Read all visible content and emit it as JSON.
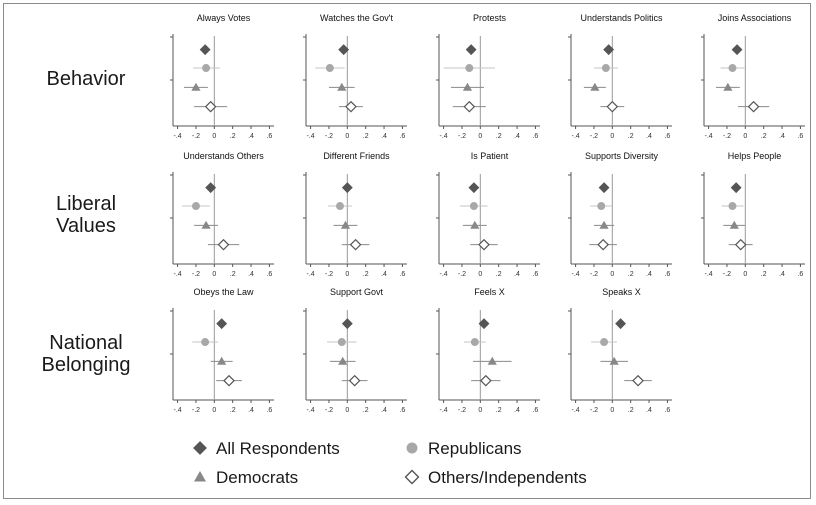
{
  "chart_data": {
    "type": "scatter",
    "x_ticks": [
      "-.4",
      "-.2",
      "0",
      ".2",
      ".4",
      ".6"
    ],
    "xlim": [
      -0.45,
      0.65
    ],
    "zero_line": 0,
    "series": [
      {
        "name": "All Respondents",
        "marker": "diamond",
        "color": "#555555"
      },
      {
        "name": "Republicans",
        "marker": "circle",
        "color": "#a8a8a8"
      },
      {
        "name": "Democrats",
        "marker": "triangle",
        "color": "#888888"
      },
      {
        "name": "Others/Independents",
        "marker": "diamond-open",
        "color": "#555555"
      }
    ],
    "rows": [
      {
        "label_lines": [
          "Behavior"
        ],
        "panels": [
          {
            "title": "Always Votes",
            "points": [
              {
                "estimate": -0.1,
                "ci": [
                  -0.15,
                  -0.05
                ]
              },
              {
                "estimate": -0.09,
                "ci": [
                  -0.23,
                  0.06
                ]
              },
              {
                "estimate": -0.2,
                "ci": [
                  -0.33,
                  -0.07
                ]
              },
              {
                "estimate": -0.04,
                "ci": [
                  -0.22,
                  0.14
                ]
              }
            ]
          },
          {
            "title": "Watches the Gov't",
            "points": [
              {
                "estimate": -0.04,
                "ci": [
                  -0.09,
                  0.01
                ]
              },
              {
                "estimate": -0.19,
                "ci": [
                  -0.35,
                  -0.03
                ]
              },
              {
                "estimate": -0.06,
                "ci": [
                  -0.2,
                  0.08
                ]
              },
              {
                "estimate": 0.04,
                "ci": [
                  -0.09,
                  0.17
                ]
              }
            ]
          },
          {
            "title": "Protests",
            "points": [
              {
                "estimate": -0.1,
                "ci": [
                  -0.15,
                  -0.05
                ]
              },
              {
                "estimate": -0.12,
                "ci": [
                  -0.4,
                  0.16
                ]
              },
              {
                "estimate": -0.14,
                "ci": [
                  -0.32,
                  0.04
                ]
              },
              {
                "estimate": -0.12,
                "ci": [
                  -0.3,
                  0.06
                ]
              }
            ]
          },
          {
            "title": "Understands Politics",
            "points": [
              {
                "estimate": -0.04,
                "ci": [
                  -0.09,
                  0.01
                ]
              },
              {
                "estimate": -0.07,
                "ci": [
                  -0.2,
                  0.06
                ]
              },
              {
                "estimate": -0.19,
                "ci": [
                  -0.31,
                  -0.07
                ]
              },
              {
                "estimate": 0.0,
                "ci": [
                  -0.13,
                  0.13
                ]
              }
            ]
          },
          {
            "title": "Joins Associations",
            "points": [
              {
                "estimate": -0.09,
                "ci": [
                  -0.14,
                  -0.04
                ]
              },
              {
                "estimate": -0.14,
                "ci": [
                  -0.27,
                  -0.01
                ]
              },
              {
                "estimate": -0.19,
                "ci": [
                  -0.32,
                  -0.06
                ]
              },
              {
                "estimate": 0.09,
                "ci": [
                  -0.08,
                  0.26
                ]
              }
            ]
          }
        ]
      },
      {
        "label_lines": [
          "Liberal",
          "Values"
        ],
        "panels": [
          {
            "title": "Understands Others",
            "points": [
              {
                "estimate": -0.04,
                "ci": [
                  -0.09,
                  0.01
                ]
              },
              {
                "estimate": -0.2,
                "ci": [
                  -0.35,
                  -0.05
                ]
              },
              {
                "estimate": -0.09,
                "ci": [
                  -0.22,
                  0.04
                ]
              },
              {
                "estimate": 0.1,
                "ci": [
                  -0.07,
                  0.27
                ]
              }
            ]
          },
          {
            "title": "Different Friends",
            "points": [
              {
                "estimate": 0.0,
                "ci": [
                  -0.05,
                  0.05
                ]
              },
              {
                "estimate": -0.08,
                "ci": [
                  -0.21,
                  0.05
                ]
              },
              {
                "estimate": -0.02,
                "ci": [
                  -0.15,
                  0.11
                ]
              },
              {
                "estimate": 0.09,
                "ci": [
                  -0.06,
                  0.24
                ]
              }
            ]
          },
          {
            "title": "Is Patient",
            "points": [
              {
                "estimate": -0.07,
                "ci": [
                  -0.12,
                  -0.02
                ]
              },
              {
                "estimate": -0.07,
                "ci": [
                  -0.22,
                  0.08
                ]
              },
              {
                "estimate": -0.06,
                "ci": [
                  -0.19,
                  0.07
                ]
              },
              {
                "estimate": 0.04,
                "ci": [
                  -0.11,
                  0.19
                ]
              }
            ]
          },
          {
            "title": "Supports Diversity",
            "points": [
              {
                "estimate": -0.09,
                "ci": [
                  -0.14,
                  -0.04
                ]
              },
              {
                "estimate": -0.12,
                "ci": [
                  -0.24,
                  0.0
                ]
              },
              {
                "estimate": -0.09,
                "ci": [
                  -0.2,
                  0.02
                ]
              },
              {
                "estimate": -0.1,
                "ci": [
                  -0.25,
                  0.05
                ]
              }
            ]
          },
          {
            "title": "Helps People",
            "points": [
              {
                "estimate": -0.1,
                "ci": [
                  -0.15,
                  -0.05
                ]
              },
              {
                "estimate": -0.14,
                "ci": [
                  -0.26,
                  -0.02
                ]
              },
              {
                "estimate": -0.12,
                "ci": [
                  -0.24,
                  0.0
                ]
              },
              {
                "estimate": -0.05,
                "ci": [
                  -0.18,
                  0.08
                ]
              }
            ]
          }
        ]
      },
      {
        "label_lines": [
          "National",
          "Belonging"
        ],
        "panels": [
          {
            "title": "Obeys the Law",
            "points": [
              {
                "estimate": 0.08,
                "ci": [
                  0.03,
                  0.13
                ]
              },
              {
                "estimate": -0.1,
                "ci": [
                  -0.24,
                  0.04
                ]
              },
              {
                "estimate": 0.08,
                "ci": [
                  -0.04,
                  0.2
                ]
              },
              {
                "estimate": 0.16,
                "ci": [
                  0.02,
                  0.3
                ]
              }
            ]
          },
          {
            "title": "Support Govt",
            "points": [
              {
                "estimate": 0.0,
                "ci": [
                  -0.05,
                  0.05
                ]
              },
              {
                "estimate": -0.06,
                "ci": [
                  -0.22,
                  0.1
                ]
              },
              {
                "estimate": -0.05,
                "ci": [
                  -0.19,
                  0.09
                ]
              },
              {
                "estimate": 0.08,
                "ci": [
                  -0.06,
                  0.22
                ]
              }
            ]
          },
          {
            "title": "Feels X",
            "points": [
              {
                "estimate": 0.04,
                "ci": [
                  -0.01,
                  0.09
                ]
              },
              {
                "estimate": -0.06,
                "ci": [
                  -0.18,
                  0.06
                ]
              },
              {
                "estimate": 0.13,
                "ci": [
                  -0.08,
                  0.34
                ]
              },
              {
                "estimate": 0.06,
                "ci": [
                  -0.1,
                  0.22
                ]
              }
            ]
          },
          {
            "title": "Speaks X",
            "points": [
              {
                "estimate": 0.09,
                "ci": [
                  0.04,
                  0.14
                ]
              },
              {
                "estimate": -0.09,
                "ci": [
                  -0.23,
                  0.05
                ]
              },
              {
                "estimate": 0.02,
                "ci": [
                  -0.13,
                  0.17
                ]
              },
              {
                "estimate": 0.28,
                "ci": [
                  0.13,
                  0.43
                ]
              }
            ]
          }
        ]
      }
    ]
  }
}
